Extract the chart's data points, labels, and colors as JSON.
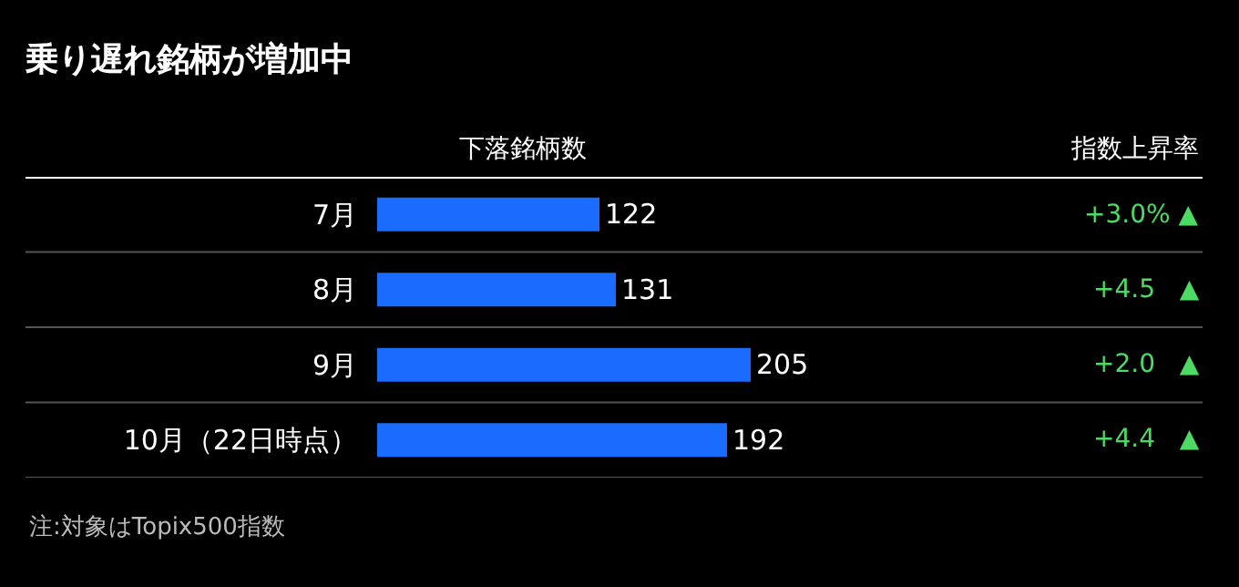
{
  "chart_data": {
    "type": "bar",
    "orientation": "horizontal",
    "title": "乗り遅れ銘柄が増加中",
    "xlabel": "下落銘柄数",
    "categories": [
      "7月",
      "8月",
      "9月",
      "10月（22日時点）"
    ],
    "values": [
      122,
      131,
      205,
      192
    ],
    "color": "#1a6cff",
    "data_labels": true,
    "xlim": [
      0,
      453
    ],
    "grid": false,
    "legend": false,
    "annotations": [
      "指数上昇率",
      "+3.0% ▲",
      "+4.5   ▲",
      "+2.0   ▲",
      "+4.4   ▲",
      "注:対象はTopix500指数"
    ]
  }
}
